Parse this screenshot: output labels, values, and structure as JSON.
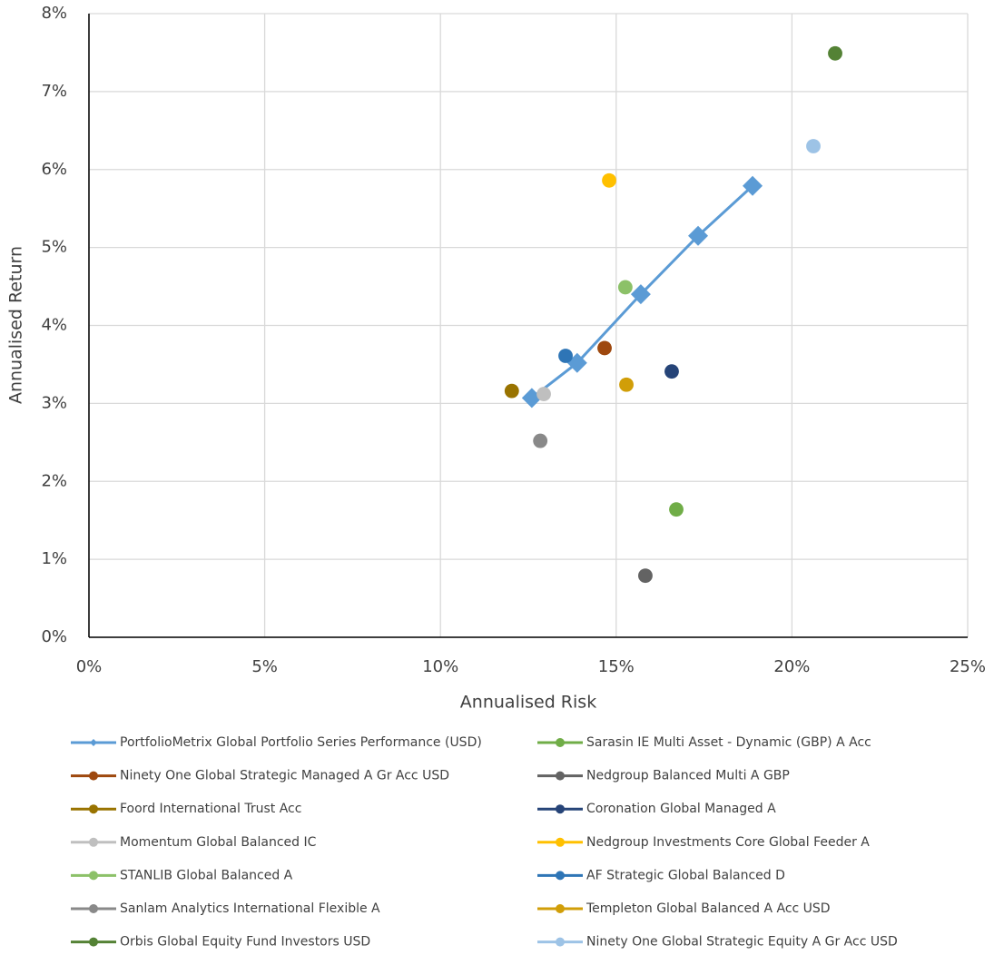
{
  "chart_data": {
    "type": "scatter",
    "x_label": "Annualised Risk",
    "y_label": "Annualised Return",
    "xlim": [
      0,
      25
    ],
    "ylim": [
      0,
      8
    ],
    "xticks": [
      {
        "value": 0,
        "label": "0%"
      },
      {
        "value": 5,
        "label": "5%"
      },
      {
        "value": 10,
        "label": "10%"
      },
      {
        "value": 15,
        "label": "15%"
      },
      {
        "value": 20,
        "label": "20%"
      },
      {
        "value": 25,
        "label": "25%"
      }
    ],
    "yticks": [
      {
        "value": 0,
        "label": "0%"
      },
      {
        "value": 1,
        "label": "1%"
      },
      {
        "value": 2,
        "label": "2%"
      },
      {
        "value": 3,
        "label": "3%"
      },
      {
        "value": 4,
        "label": "4%"
      },
      {
        "value": 5,
        "label": "5%"
      },
      {
        "value": 6,
        "label": "6%"
      },
      {
        "value": 7,
        "label": "7%"
      },
      {
        "value": 8,
        "label": "8%"
      }
    ],
    "grid": true,
    "legend": "bottom",
    "series": [
      {
        "name": "PortfolioMetrix Global Portfolio Series Performance (USD)",
        "color": "#5b9bd5",
        "line": true,
        "marker": "diamond",
        "x": [
          12.6,
          13.89,
          15.7,
          17.33,
          18.88
        ],
        "values": [
          3.07,
          3.52,
          4.4,
          5.15,
          5.79
        ]
      },
      {
        "name": "Sarasin IE Multi Asset - Dynamic (GBP) A Acc",
        "color": "#70ad47",
        "x": [
          16.71
        ],
        "values": [
          1.64
        ]
      },
      {
        "name": "Ninety One Global Strategic Managed A Gr Acc USD",
        "color": "#9e480e",
        "x": [
          14.67
        ],
        "values": [
          3.71
        ]
      },
      {
        "name": "Nedgroup Balanced Multi A GBP",
        "color": "#636363",
        "x": [
          15.83
        ],
        "values": [
          0.79
        ]
      },
      {
        "name": "Foord International Trust Acc",
        "color": "#997300",
        "x": [
          12.03
        ],
        "values": [
          3.16
        ]
      },
      {
        "name": "Coronation Global Managed A",
        "color": "#264478",
        "x": [
          16.58
        ],
        "values": [
          3.41
        ]
      },
      {
        "name": "Momentum Global Balanced IC",
        "color": "#bfbfbf",
        "x": [
          12.94
        ],
        "values": [
          3.12
        ]
      },
      {
        "name": "Nedgroup Investments Core Global Feeder A",
        "color": "#ffc000",
        "x": [
          14.8
        ],
        "values": [
          5.86
        ]
      },
      {
        "name": "STANLIB Global Balanced A",
        "color": "#8cc168",
        "x": [
          15.26
        ],
        "values": [
          4.49
        ]
      },
      {
        "name": "AF Strategic Global Balanced D",
        "color": "#2e75b6",
        "x": [
          13.56
        ],
        "values": [
          3.61
        ]
      },
      {
        "name": "Sanlam Analytics International Flexible A",
        "color": "#898989",
        "x": [
          12.84
        ],
        "values": [
          2.52
        ]
      },
      {
        "name": "Templeton Global Balanced A Acc USD",
        "color": "#d19e08",
        "x": [
          15.29
        ],
        "values": [
          3.24
        ]
      },
      {
        "name": "Orbis Global Equity Fund Investors USD",
        "color": "#548235",
        "x": [
          21.23
        ],
        "values": [
          7.49
        ]
      },
      {
        "name": "Ninety One Global Strategic Equity A Gr Acc USD",
        "color": "#9dc3e6",
        "x": [
          20.61
        ],
        "values": [
          6.3
        ]
      }
    ]
  }
}
